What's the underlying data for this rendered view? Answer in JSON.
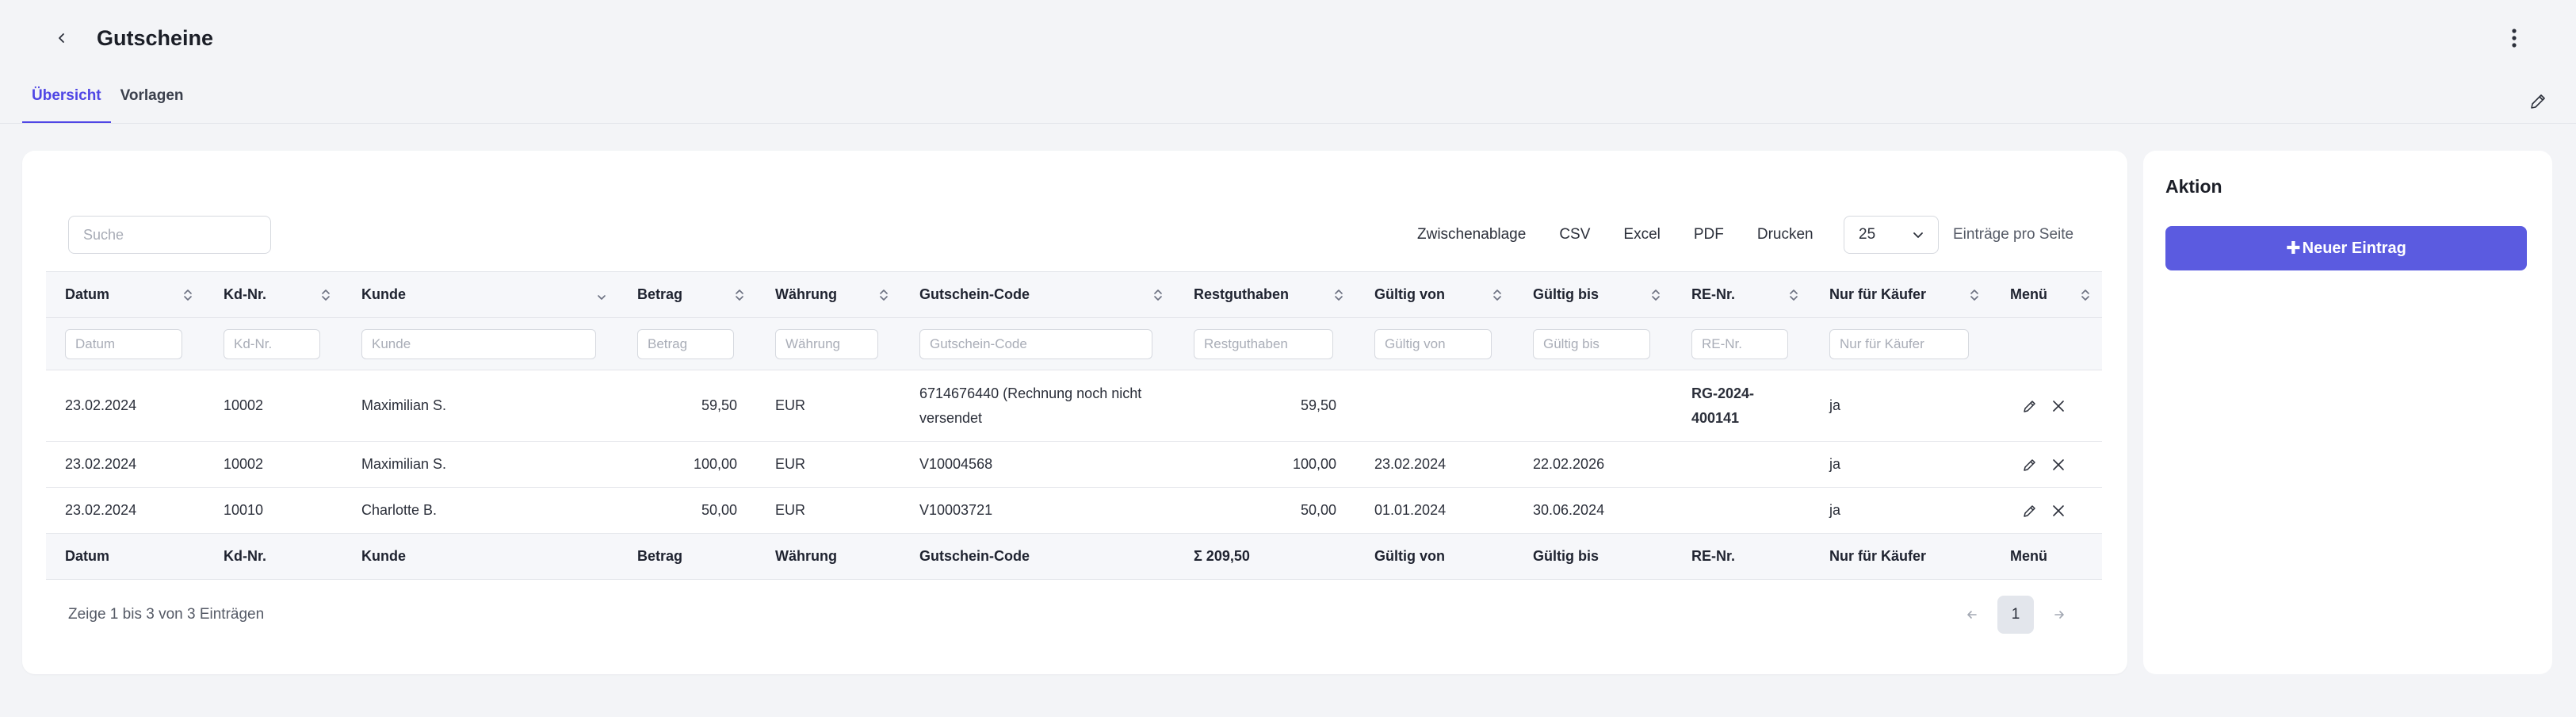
{
  "header": {
    "title": "Gutscheine",
    "back_icon": "chevron-left-icon",
    "menu_icon": "kebab-vertical-icon"
  },
  "tabs": [
    {
      "label": "Übersicht",
      "active": true
    },
    {
      "label": "Vorlagen",
      "active": false
    }
  ],
  "toolbar": {
    "search_placeholder": "Suche",
    "export_buttons": [
      "Zwischenablage",
      "CSV",
      "Excel",
      "PDF",
      "Drucken"
    ],
    "page_size": "25",
    "per_page_label": "Einträge pro Seite"
  },
  "table": {
    "columns": [
      "Datum",
      "Kd-Nr.",
      "Kunde",
      "Betrag",
      "Währung",
      "Gutschein-Code",
      "Restguthaben",
      "Gültig von",
      "Gültig bis",
      "RE-Nr.",
      "Nur für Käufer",
      "Menü"
    ],
    "filter_placeholders": [
      "Datum",
      "Kd-Nr.",
      "Kunde",
      "Betrag",
      "Währung",
      "Gutschein-Code",
      "Restguthaben",
      "Gültig von",
      "Gültig bis",
      "RE-Nr.",
      "Nur für Käufer"
    ],
    "rows": [
      {
        "datum": "23.02.2024",
        "kdnr": "10002",
        "kunde": "Maximilian S.",
        "betrag": "59,50",
        "waehrung": "EUR",
        "code": "6714676440 (Rechnung noch nicht versendet",
        "rest": "59,50",
        "von": "",
        "bis": "",
        "renr": "RG-2024-400141",
        "nur_kaeufer": "ja"
      },
      {
        "datum": "23.02.2024",
        "kdnr": "10002",
        "kunde": "Maximilian S.",
        "betrag": "100,00",
        "waehrung": "EUR",
        "code": "V10004568",
        "rest": "100,00",
        "von": "23.02.2024",
        "bis": "22.02.2026",
        "renr": "",
        "nur_kaeufer": "ja"
      },
      {
        "datum": "23.02.2024",
        "kdnr": "10010",
        "kunde": "Charlotte B.",
        "betrag": "50,00",
        "waehrung": "EUR",
        "code": "V10003721",
        "rest": "50,00",
        "von": "01.01.2024",
        "bis": "30.06.2024",
        "renr": "",
        "nur_kaeufer": "ja"
      }
    ],
    "footer": {
      "datum": "Datum",
      "kdnr": "Kd-Nr.",
      "kunde": "Kunde",
      "betrag": "Betrag",
      "waehrung": "Währung",
      "code": "Gutschein-Code",
      "rest_sum": "Σ 209,50",
      "von": "Gültig von",
      "bis": "Gültig bis",
      "renr": "RE-Nr.",
      "nur_kaeufer": "Nur für Käufer",
      "menu": "Menü"
    },
    "info": "Zeige 1 bis 3 von 3 Einträgen",
    "current_page": "1"
  },
  "side": {
    "title": "Aktion",
    "new_entry_label": "Neuer Eintrag"
  },
  "colors": {
    "accent": "#5b5be0",
    "tab_active": "#4f46e5",
    "sum": "#dc2626"
  }
}
